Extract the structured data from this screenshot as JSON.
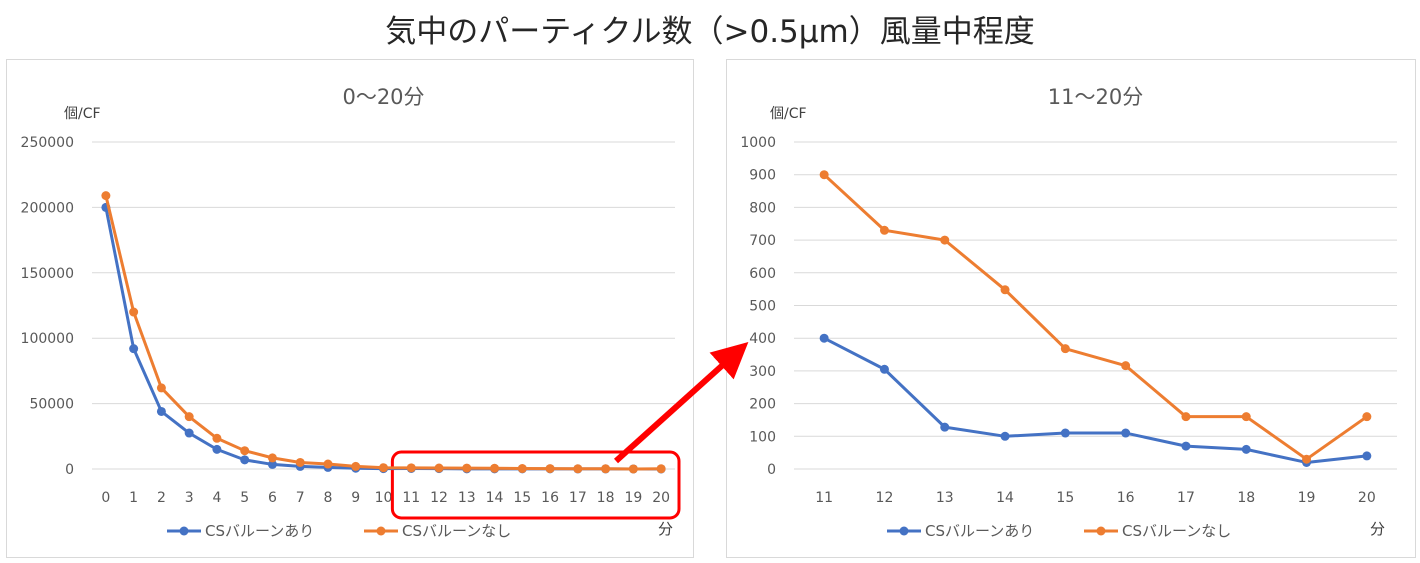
{
  "title": "気中のパーティクル数（>0.5μm）風量中程度",
  "colors": {
    "series_a": "#4472c4",
    "series_b": "#ed7d31",
    "highlight": "#ff0000",
    "grid": "#d9d9d9"
  },
  "chart_data": [
    {
      "type": "line",
      "title": "0〜20分",
      "ylabel": "個/CF",
      "xlabel": "分",
      "categories": [
        "0",
        "1",
        "2",
        "3",
        "4",
        "5",
        "6",
        "7",
        "8",
        "9",
        "10",
        "11",
        "12",
        "13",
        "14",
        "15",
        "16",
        "17",
        "18",
        "19",
        "20"
      ],
      "ylim": [
        0,
        250000
      ],
      "yticks": [
        "0",
        "50000",
        "100000",
        "150000",
        "200000",
        "250000"
      ],
      "grid": true,
      "legend_position": "bottom",
      "highlight_range": [
        "11",
        "20"
      ],
      "series": [
        {
          "name": "CSバルーンあり",
          "values": [
            200000,
            92000,
            44000,
            27500,
            15000,
            7000,
            3500,
            2000,
            1200,
            600,
            300,
            400,
            305,
            128,
            100,
            110,
            110,
            70,
            60,
            20,
            40
          ]
        },
        {
          "name": "CSバルーンなし",
          "values": [
            209000,
            120000,
            62000,
            40000,
            23500,
            14000,
            8500,
            5000,
            3800,
            2000,
            1000,
            900,
            730,
            700,
            548,
            368,
            316,
            160,
            160,
            30,
            160
          ]
        }
      ]
    },
    {
      "type": "line",
      "title": "11〜20分",
      "ylabel": "個/CF",
      "xlabel": "分",
      "categories": [
        "11",
        "12",
        "13",
        "14",
        "15",
        "16",
        "17",
        "18",
        "19",
        "20"
      ],
      "ylim": [
        0,
        1000
      ],
      "yticks": [
        "0",
        "100",
        "200",
        "300",
        "400",
        "500",
        "600",
        "700",
        "800",
        "900",
        "1000"
      ],
      "grid": true,
      "legend_position": "bottom",
      "series": [
        {
          "name": "CSバルーンあり",
          "values": [
            400,
            305,
            128,
            100,
            110,
            110,
            70,
            60,
            20,
            40
          ]
        },
        {
          "name": "CSバルーンなし",
          "values": [
            900,
            730,
            700,
            548,
            368,
            316,
            160,
            160,
            30,
            160
          ]
        }
      ]
    }
  ]
}
